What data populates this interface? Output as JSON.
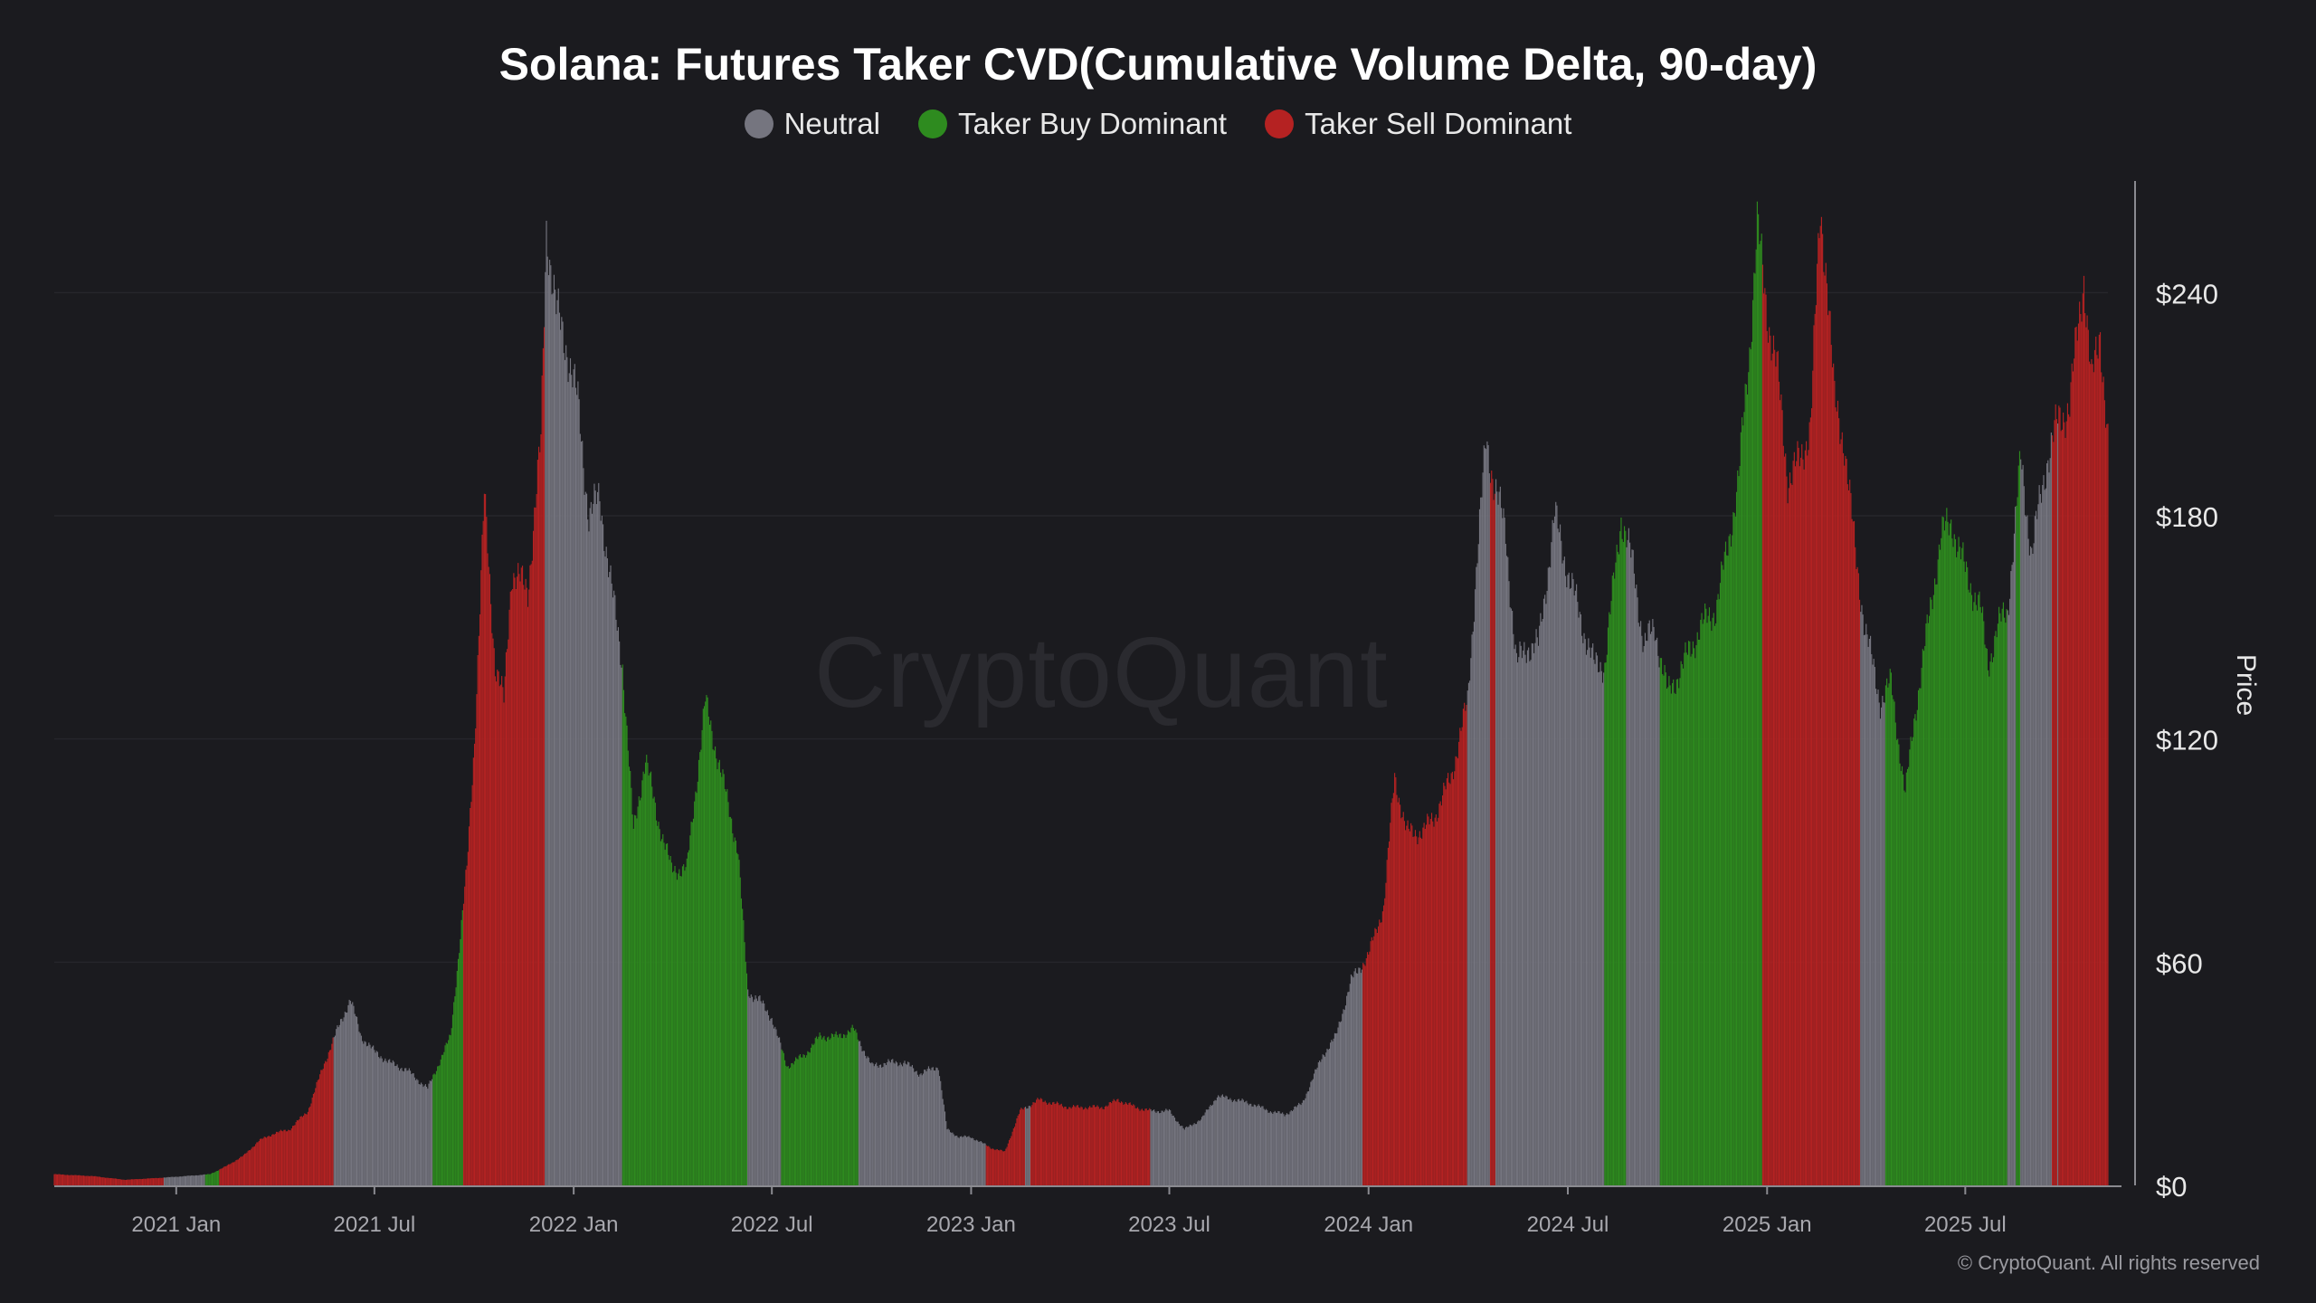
{
  "title": "Solana: Futures Taker CVD(Cumulative Volume Delta, 90-day)",
  "watermark": "CryptoQuant",
  "copyright": "© CryptoQuant. All rights reserved",
  "legend": [
    {
      "label": "Neutral",
      "color": "#75757f"
    },
    {
      "label": "Taker Buy Dominant",
      "color": "#2e8b1f"
    },
    {
      "label": "Taker Sell Dominant",
      "color": "#b52222"
    }
  ],
  "chart_data": {
    "type": "bar",
    "ylabel": "Price",
    "ylim": [
      0,
      270
    ],
    "yticks": [
      0,
      60,
      120,
      180,
      240
    ],
    "ytick_labels": [
      "$0",
      "$60",
      "$120",
      "$180",
      "$240"
    ],
    "xticks": [
      "2020-12-01",
      "2021-06-01",
      "2021-12-01",
      "2022-06-01",
      "2022-12-01",
      "2023-06-01",
      "2023-12-01",
      "2024-06-01",
      "2024-12-01",
      "2025-06-01"
    ],
    "xtick_labels": [
      "2021 Jan",
      "2021 Jul",
      "2022 Jan",
      "2022 Jul",
      "2023 Jan",
      "2023 Jul",
      "2024 Jan",
      "2024 Jul",
      "2025 Jan",
      "2025 Jul"
    ],
    "x_range": [
      "2020-08-11",
      "2025-10-10"
    ],
    "colors": {
      "neutral": "#75757f",
      "buy": "#2e8b1f",
      "sell": "#b52222"
    },
    "price_points": [
      [
        "2020-08-11",
        3
      ],
      [
        "2020-09-15",
        2.5
      ],
      [
        "2020-10-15",
        1.5
      ],
      [
        "2020-11-15",
        2
      ],
      [
        "2020-12-10",
        2.5
      ],
      [
        "2021-01-01",
        3
      ],
      [
        "2021-01-15",
        5
      ],
      [
        "2021-02-01",
        8
      ],
      [
        "2021-02-15",
        12
      ],
      [
        "2021-03-01",
        14
      ],
      [
        "2021-03-15",
        15
      ],
      [
        "2021-04-01",
        20
      ],
      [
        "2021-04-15",
        32
      ],
      [
        "2021-05-01",
        44
      ],
      [
        "2021-05-10",
        50
      ],
      [
        "2021-05-20",
        40
      ],
      [
        "2021-06-01",
        36
      ],
      [
        "2021-06-15",
        33
      ],
      [
        "2021-07-01",
        31
      ],
      [
        "2021-07-20",
        26
      ],
      [
        "2021-08-01",
        34
      ],
      [
        "2021-08-10",
        40
      ],
      [
        "2021-08-20",
        70
      ],
      [
        "2021-08-25",
        85
      ],
      [
        "2021-09-01",
        120
      ],
      [
        "2021-09-08",
        170
      ],
      [
        "2021-09-10",
        185
      ],
      [
        "2021-09-20",
        140
      ],
      [
        "2021-09-28",
        130
      ],
      [
        "2021-10-05",
        165
      ],
      [
        "2021-10-20",
        160
      ],
      [
        "2021-11-01",
        200
      ],
      [
        "2021-11-06",
        258
      ],
      [
        "2021-11-15",
        235
      ],
      [
        "2021-11-25",
        225
      ],
      [
        "2021-12-05",
        210
      ],
      [
        "2021-12-15",
        180
      ],
      [
        "2021-12-25",
        185
      ],
      [
        "2022-01-05",
        160
      ],
      [
        "2022-01-15",
        140
      ],
      [
        "2022-01-25",
        95
      ],
      [
        "2022-02-05",
        115
      ],
      [
        "2022-02-15",
        100
      ],
      [
        "2022-03-01",
        85
      ],
      [
        "2022-03-15",
        85
      ],
      [
        "2022-04-01",
        130
      ],
      [
        "2022-04-10",
        118
      ],
      [
        "2022-04-20",
        105
      ],
      [
        "2022-05-01",
        90
      ],
      [
        "2022-05-10",
        52
      ],
      [
        "2022-05-20",
        50
      ],
      [
        "2022-06-01",
        45
      ],
      [
        "2022-06-15",
        32
      ],
      [
        "2022-07-01",
        35
      ],
      [
        "2022-07-15",
        40
      ],
      [
        "2022-08-01",
        40
      ],
      [
        "2022-08-15",
        42
      ],
      [
        "2022-09-01",
        32
      ],
      [
        "2022-09-15",
        33
      ],
      [
        "2022-10-01",
        33
      ],
      [
        "2022-10-15",
        30
      ],
      [
        "2022-11-01",
        32
      ],
      [
        "2022-11-09",
        15
      ],
      [
        "2022-11-20",
        13
      ],
      [
        "2022-12-01",
        13
      ],
      [
        "2022-12-20",
        10
      ],
      [
        "2023-01-01",
        9
      ],
      [
        "2023-01-15",
        20
      ],
      [
        "2023-02-01",
        23
      ],
      [
        "2023-02-15",
        22
      ],
      [
        "2023-03-01",
        21
      ],
      [
        "2023-03-15",
        21
      ],
      [
        "2023-04-01",
        21
      ],
      [
        "2023-04-15",
        23
      ],
      [
        "2023-05-01",
        21
      ],
      [
        "2023-05-15",
        20
      ],
      [
        "2023-06-01",
        20
      ],
      [
        "2023-06-15",
        15
      ],
      [
        "2023-07-01",
        18
      ],
      [
        "2023-07-15",
        24
      ],
      [
        "2023-08-01",
        23
      ],
      [
        "2023-08-15",
        22
      ],
      [
        "2023-09-01",
        20
      ],
      [
        "2023-09-15",
        19
      ],
      [
        "2023-10-01",
        22
      ],
      [
        "2023-10-20",
        35
      ],
      [
        "2023-11-01",
        40
      ],
      [
        "2023-11-15",
        55
      ],
      [
        "2023-12-01",
        62
      ],
      [
        "2023-12-15",
        75
      ],
      [
        "2023-12-25",
        110
      ],
      [
        "2024-01-05",
        95
      ],
      [
        "2024-01-20",
        95
      ],
      [
        "2024-02-01",
        100
      ],
      [
        "2024-02-15",
        110
      ],
      [
        "2024-03-01",
        130
      ],
      [
        "2024-03-10",
        170
      ],
      [
        "2024-03-18",
        200
      ],
      [
        "2024-03-25",
        190
      ],
      [
        "2024-04-05",
        175
      ],
      [
        "2024-04-15",
        140
      ],
      [
        "2024-04-25",
        145
      ],
      [
        "2024-05-05",
        145
      ],
      [
        "2024-05-20",
        180
      ],
      [
        "2024-06-01",
        165
      ],
      [
        "2024-06-15",
        150
      ],
      [
        "2024-06-25",
        140
      ],
      [
        "2024-07-05",
        140
      ],
      [
        "2024-07-20",
        180
      ],
      [
        "2024-08-01",
        165
      ],
      [
        "2024-08-10",
        145
      ],
      [
        "2024-08-20",
        150
      ],
      [
        "2024-09-01",
        132
      ],
      [
        "2024-09-15",
        140
      ],
      [
        "2024-10-01",
        150
      ],
      [
        "2024-10-15",
        155
      ],
      [
        "2024-10-25",
        170
      ],
      [
        "2024-11-05",
        190
      ],
      [
        "2024-11-15",
        225
      ],
      [
        "2024-11-22",
        258
      ],
      [
        "2024-12-01",
        235
      ],
      [
        "2024-12-10",
        220
      ],
      [
        "2024-12-20",
        190
      ],
      [
        "2025-01-01",
        195
      ],
      [
        "2025-01-10",
        205
      ],
      [
        "2025-01-19",
        262
      ],
      [
        "2025-01-25",
        245
      ],
      [
        "2025-02-01",
        210
      ],
      [
        "2025-02-10",
        200
      ],
      [
        "2025-02-20",
        170
      ],
      [
        "2025-03-01",
        150
      ],
      [
        "2025-03-15",
        130
      ],
      [
        "2025-03-25",
        135
      ],
      [
        "2025-04-07",
        105
      ],
      [
        "2025-04-15",
        125
      ],
      [
        "2025-04-25",
        145
      ],
      [
        "2025-05-10",
        175
      ],
      [
        "2025-05-20",
        178
      ],
      [
        "2025-06-01",
        165
      ],
      [
        "2025-06-15",
        155
      ],
      [
        "2025-06-22",
        140
      ],
      [
        "2025-07-01",
        150
      ],
      [
        "2025-07-10",
        155
      ],
      [
        "2025-07-22",
        195
      ],
      [
        "2025-08-01",
        170
      ],
      [
        "2025-08-15",
        195
      ],
      [
        "2025-08-25",
        205
      ],
      [
        "2025-09-05",
        210
      ],
      [
        "2025-09-18",
        245
      ],
      [
        "2025-09-25",
        215
      ],
      [
        "2025-10-03",
        230
      ],
      [
        "2025-10-10",
        200
      ]
    ],
    "regimes": [
      [
        "2020-08-11",
        "sell"
      ],
      [
        "2020-11-20",
        "neutral"
      ],
      [
        "2020-12-28",
        "buy"
      ],
      [
        "2021-01-10",
        "sell"
      ],
      [
        "2021-04-25",
        "neutral"
      ],
      [
        "2021-07-25",
        "buy"
      ],
      [
        "2021-08-22",
        "sell"
      ],
      [
        "2021-11-05",
        "neutral"
      ],
      [
        "2022-01-15",
        "buy"
      ],
      [
        "2022-05-10",
        "neutral"
      ],
      [
        "2022-06-10",
        "buy"
      ],
      [
        "2022-08-20",
        "neutral"
      ],
      [
        "2022-12-15",
        "sell"
      ],
      [
        "2023-01-20",
        "neutral"
      ],
      [
        "2023-01-25",
        "sell"
      ],
      [
        "2023-05-15",
        "neutral"
      ],
      [
        "2023-11-26",
        "sell"
      ],
      [
        "2024-03-01",
        "neutral"
      ],
      [
        "2024-03-22",
        "sell"
      ],
      [
        "2024-03-27",
        "neutral"
      ],
      [
        "2024-07-05",
        "buy"
      ],
      [
        "2024-07-25",
        "neutral"
      ],
      [
        "2024-08-25",
        "buy"
      ],
      [
        "2024-11-27",
        "sell"
      ],
      [
        "2025-02-25",
        "neutral"
      ],
      [
        "2025-03-20",
        "buy"
      ],
      [
        "2025-07-10",
        "neutral"
      ],
      [
        "2025-07-18",
        "buy"
      ],
      [
        "2025-07-22",
        "neutral"
      ],
      [
        "2025-08-20",
        "sell"
      ],
      [
        "2025-08-25",
        "neutral"
      ],
      [
        "2025-08-26",
        "sell"
      ]
    ]
  }
}
